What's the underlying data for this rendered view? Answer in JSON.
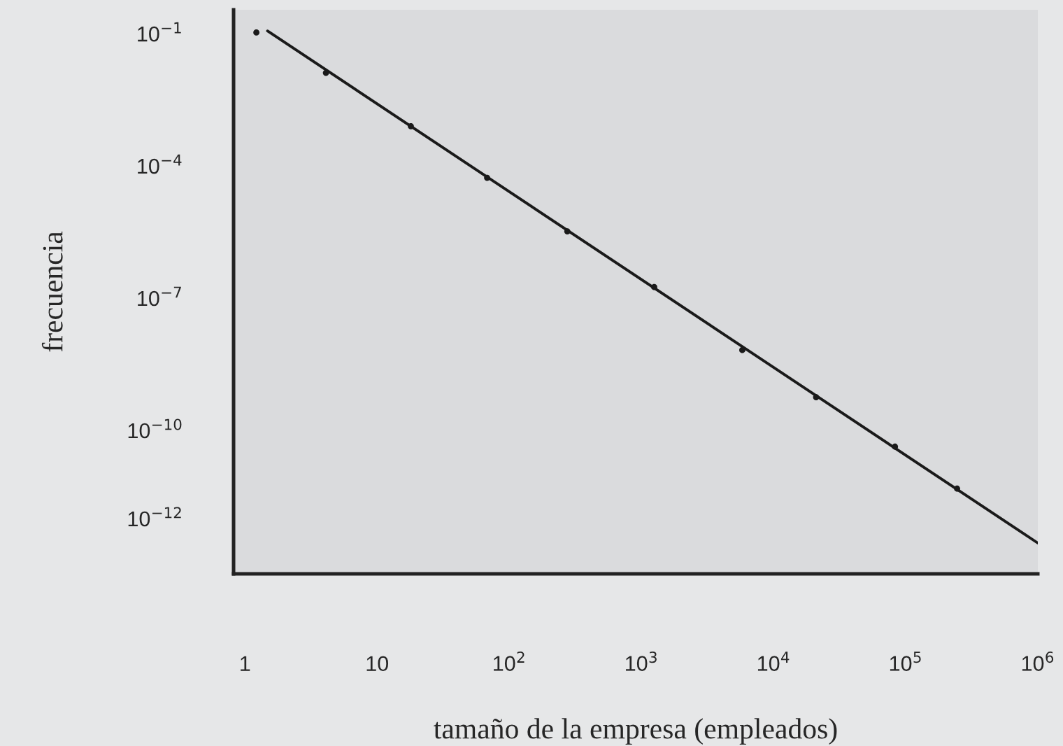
{
  "chart_data": {
    "type": "scatter",
    "xlabel": "tamaño de la empresa (empleados)",
    "ylabel": "frecuencia",
    "log": "xy",
    "marker": "circle",
    "grid": false,
    "series": [
      {
        "color": "#1a1a1a",
        "x": [
          1.22,
          4.1,
          18,
          68,
          275,
          1250,
          5800,
          21000,
          83000,
          245000
        ],
        "values": [
          0.107,
          0.013,
          0.0008,
          5.4e-05,
          3.3e-06,
          1.8e-07,
          6.7e-09,
          5.7e-10,
          4.3e-11,
          4.8e-12
        ]
      },
      {
        "type": "line",
        "color": "#1a1a1a",
        "marker": "none",
        "x": [
          1.48,
          1000000
        ],
        "values": [
          0.116,
          2.8e-13
        ]
      }
    ],
    "xlim": [
      0.82,
      1000000
    ],
    "ylim": [
      5.6e-14,
      0.35
    ],
    "xticks": [
      1,
      10,
      {
        "value": 100,
        "label": "10$^{2}$"
      },
      {
        "value": 1000,
        "label": "10$^{3}$"
      },
      {
        "value": 10000,
        "label": "10$^{4}$"
      },
      {
        "value": 100000,
        "label": "10$^{5}$"
      },
      {
        "value": 1000000,
        "label": "10$^{6}$"
      }
    ],
    "yticks": [
      {
        "value": 0.1,
        "label": "10$^{−1}$"
      },
      {
        "value": 0.0001,
        "label": "10$^{−4}$"
      },
      {
        "value": 1e-07,
        "label": "10$^{−7}$"
      },
      {
        "value": 1e-10,
        "label": "10$^{−10}$"
      },
      {
        "value": 1e-12,
        "label": "10$^{−12}$"
      }
    ]
  }
}
